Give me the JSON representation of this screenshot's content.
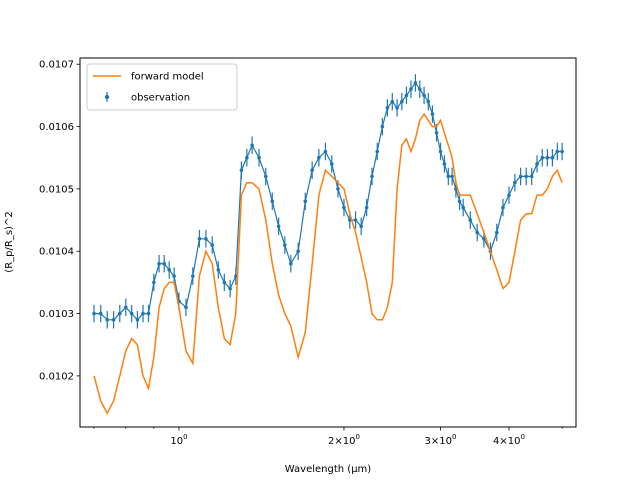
{
  "chart_data": {
    "type": "line",
    "xlabel": "Wavelength (μm)",
    "ylabel": "(R_p/R_s)^2",
    "x_scale": "log",
    "xlim": [
      0.66,
      5.3
    ],
    "ylim": [
      0.010118,
      0.01071
    ],
    "grid": false,
    "legend_position": "top-left",
    "x_ticks": [
      {
        "value": 1.0,
        "label": "10^0"
      },
      {
        "value": 2.0,
        "label": "2×10^0"
      },
      {
        "value": 3.0,
        "label": "3×10^0"
      },
      {
        "value": 4.0,
        "label": "4×10^0"
      }
    ],
    "y_ticks": [
      {
        "value": 0.0102,
        "label": "0.0102"
      },
      {
        "value": 0.0103,
        "label": "0.0103"
      },
      {
        "value": 0.0104,
        "label": "0.0104"
      },
      {
        "value": 0.0105,
        "label": "0.0105"
      },
      {
        "value": 0.0106,
        "label": "0.0106"
      },
      {
        "value": 0.0107,
        "label": "0.0107"
      }
    ],
    "colors": {
      "observation": "#1f77b4",
      "forward_model": "#ff7f0e"
    },
    "legend": [
      {
        "name": "forward model",
        "kind": "line"
      },
      {
        "name": "observation",
        "kind": "errorbar"
      }
    ],
    "series": [
      {
        "name": "forward model",
        "kind": "line",
        "x": [
          0.7,
          0.72,
          0.74,
          0.76,
          0.78,
          0.8,
          0.82,
          0.84,
          0.86,
          0.88,
          0.9,
          0.92,
          0.94,
          0.96,
          0.98,
          1.0,
          1.03,
          1.06,
          1.09,
          1.12,
          1.15,
          1.18,
          1.21,
          1.24,
          1.27,
          1.3,
          1.33,
          1.36,
          1.4,
          1.44,
          1.48,
          1.52,
          1.56,
          1.6,
          1.65,
          1.7,
          1.75,
          1.8,
          1.85,
          1.9,
          1.95,
          2.0,
          2.05,
          2.1,
          2.15,
          2.2,
          2.25,
          2.3,
          2.35,
          2.4,
          2.45,
          2.5,
          2.55,
          2.6,
          2.65,
          2.7,
          2.75,
          2.8,
          2.85,
          2.9,
          2.95,
          3.0,
          3.05,
          3.1,
          3.15,
          3.2,
          3.25,
          3.3,
          3.4,
          3.5,
          3.6,
          3.7,
          3.8,
          3.9,
          4.0,
          4.1,
          4.2,
          4.3,
          4.4,
          4.5,
          4.6,
          4.7,
          4.8,
          4.9,
          5.0
        ],
        "y": [
          0.0102,
          0.01016,
          0.01014,
          0.01016,
          0.0102,
          0.01024,
          0.01026,
          0.01025,
          0.0102,
          0.01018,
          0.01023,
          0.01031,
          0.01034,
          0.01035,
          0.01035,
          0.01031,
          0.01024,
          0.01022,
          0.01036,
          0.0104,
          0.01038,
          0.01031,
          0.01026,
          0.01025,
          0.0103,
          0.01049,
          0.01051,
          0.01051,
          0.0105,
          0.01045,
          0.01038,
          0.01033,
          0.0103,
          0.01028,
          0.01023,
          0.01027,
          0.01038,
          0.01049,
          0.01053,
          0.01052,
          0.01051,
          0.0105,
          0.01046,
          0.01043,
          0.01039,
          0.01035,
          0.0103,
          0.01029,
          0.01029,
          0.01031,
          0.01035,
          0.0105,
          0.01057,
          0.01058,
          0.01056,
          0.01058,
          0.01061,
          0.01062,
          0.01061,
          0.0106,
          0.0106,
          0.01061,
          0.01059,
          0.01057,
          0.01055,
          0.01051,
          0.01049,
          0.01049,
          0.01049,
          0.01046,
          0.01043,
          0.0104,
          0.01037,
          0.01034,
          0.01035,
          0.0104,
          0.01045,
          0.01046,
          0.01046,
          0.01049,
          0.01049,
          0.0105,
          0.01052,
          0.01053,
          0.01051
        ]
      },
      {
        "name": "observation",
        "kind": "errorbar",
        "yerr": 1.4e-05,
        "x": [
          0.7,
          0.72,
          0.74,
          0.76,
          0.78,
          0.8,
          0.82,
          0.84,
          0.86,
          0.88,
          0.9,
          0.92,
          0.94,
          0.96,
          0.98,
          1.0,
          1.03,
          1.06,
          1.09,
          1.12,
          1.15,
          1.18,
          1.21,
          1.24,
          1.27,
          1.3,
          1.33,
          1.36,
          1.4,
          1.44,
          1.48,
          1.52,
          1.56,
          1.6,
          1.65,
          1.7,
          1.75,
          1.8,
          1.85,
          1.9,
          1.95,
          2.0,
          2.05,
          2.1,
          2.15,
          2.2,
          2.25,
          2.3,
          2.35,
          2.4,
          2.45,
          2.5,
          2.55,
          2.6,
          2.65,
          2.7,
          2.75,
          2.8,
          2.85,
          2.9,
          2.95,
          3.0,
          3.05,
          3.1,
          3.15,
          3.2,
          3.25,
          3.3,
          3.4,
          3.5,
          3.6,
          3.7,
          3.8,
          3.9,
          4.0,
          4.1,
          4.2,
          4.3,
          4.4,
          4.5,
          4.6,
          4.7,
          4.8,
          4.9,
          5.0
        ],
        "y": [
          0.0103,
          0.0103,
          0.01029,
          0.01029,
          0.0103,
          0.01031,
          0.0103,
          0.01029,
          0.0103,
          0.0103,
          0.01035,
          0.01038,
          0.01038,
          0.01037,
          0.01036,
          0.01032,
          0.01031,
          0.01036,
          0.01042,
          0.01042,
          0.01041,
          0.01037,
          0.01035,
          0.01034,
          0.01036,
          0.01053,
          0.01055,
          0.01057,
          0.01055,
          0.01052,
          0.01048,
          0.01044,
          0.01041,
          0.01038,
          0.0104,
          0.01048,
          0.01053,
          0.01055,
          0.01056,
          0.01054,
          0.0105,
          0.01047,
          0.01045,
          0.01045,
          0.01044,
          0.01047,
          0.01052,
          0.01056,
          0.0106,
          0.01063,
          0.01064,
          0.01063,
          0.01064,
          0.01065,
          0.01066,
          0.01067,
          0.01066,
          0.01065,
          0.01064,
          0.01062,
          0.01059,
          0.01056,
          0.01054,
          0.01052,
          0.01052,
          0.0105,
          0.01048,
          0.01047,
          0.01045,
          0.01043,
          0.01042,
          0.0104,
          0.01043,
          0.01047,
          0.01049,
          0.01051,
          0.01052,
          0.01052,
          0.01052,
          0.01054,
          0.01055,
          0.01055,
          0.01055,
          0.01056,
          0.01056
        ]
      }
    ]
  }
}
